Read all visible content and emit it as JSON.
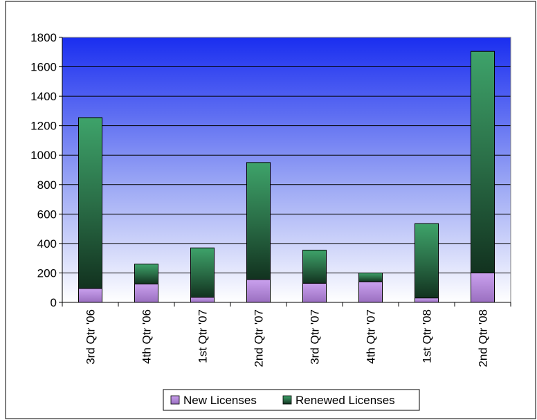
{
  "chart_data": {
    "type": "bar",
    "stacked": true,
    "categories": [
      "3rd Qtr '06",
      "4th Qtr '06",
      "1st Qtr '07",
      "2nd Qtr '07",
      "3rd Qtr '07",
      "4th Qtr '07",
      "1st Qtr '08",
      "2nd Qtr '08"
    ],
    "series": [
      {
        "name": "New Licenses",
        "values": [
          95,
          125,
          35,
          155,
          130,
          140,
          30,
          200
        ],
        "color": "#b98bd6"
      },
      {
        "name": "Renewed Licenses",
        "values": [
          1160,
          135,
          335,
          795,
          225,
          60,
          505,
          1505
        ],
        "color": "#2e8b57"
      }
    ],
    "ylim": [
      0,
      1800
    ],
    "yticks": [
      0,
      200,
      400,
      600,
      800,
      1000,
      1200,
      1400,
      1600,
      1800
    ],
    "grid": true,
    "legend_position": "bottom",
    "plot_background": "gradient blue-to-white"
  }
}
